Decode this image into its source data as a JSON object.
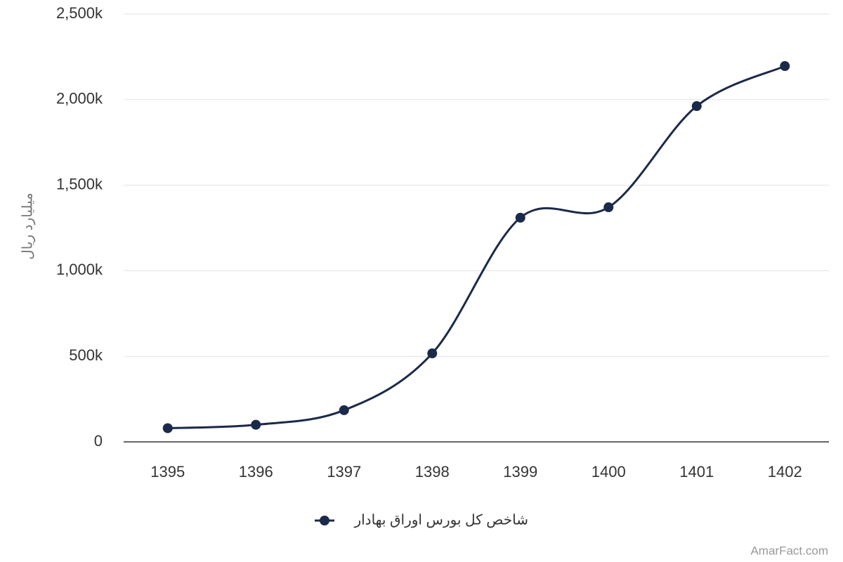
{
  "chart_data": {
    "type": "line",
    "y_label": "میلیارد ریال",
    "categories": [
      "1395",
      "1396",
      "1397",
      "1398",
      "1399",
      "1400",
      "1401",
      "1402"
    ],
    "series": [
      {
        "name": "شاخص کل بورس اوراق بهادار",
        "color": "#1b2a4a",
        "values": [
          80000,
          100000,
          185000,
          517000,
          1310000,
          1371000,
          1962000,
          2196000
        ]
      }
    ],
    "ylim": [
      0,
      2500000
    ],
    "yticks": [
      0,
      {
        "value": 500000,
        "label": "500k"
      },
      {
        "value": 1000000,
        "label": "1,000k"
      },
      {
        "value": 1500000,
        "label": "1,500k"
      },
      {
        "value": 2000000,
        "label": "2,000k"
      },
      {
        "value": 2500000,
        "label": "2,500k"
      }
    ],
    "grid": true,
    "legend": "bottom",
    "watermark": "AmarFact.com"
  }
}
